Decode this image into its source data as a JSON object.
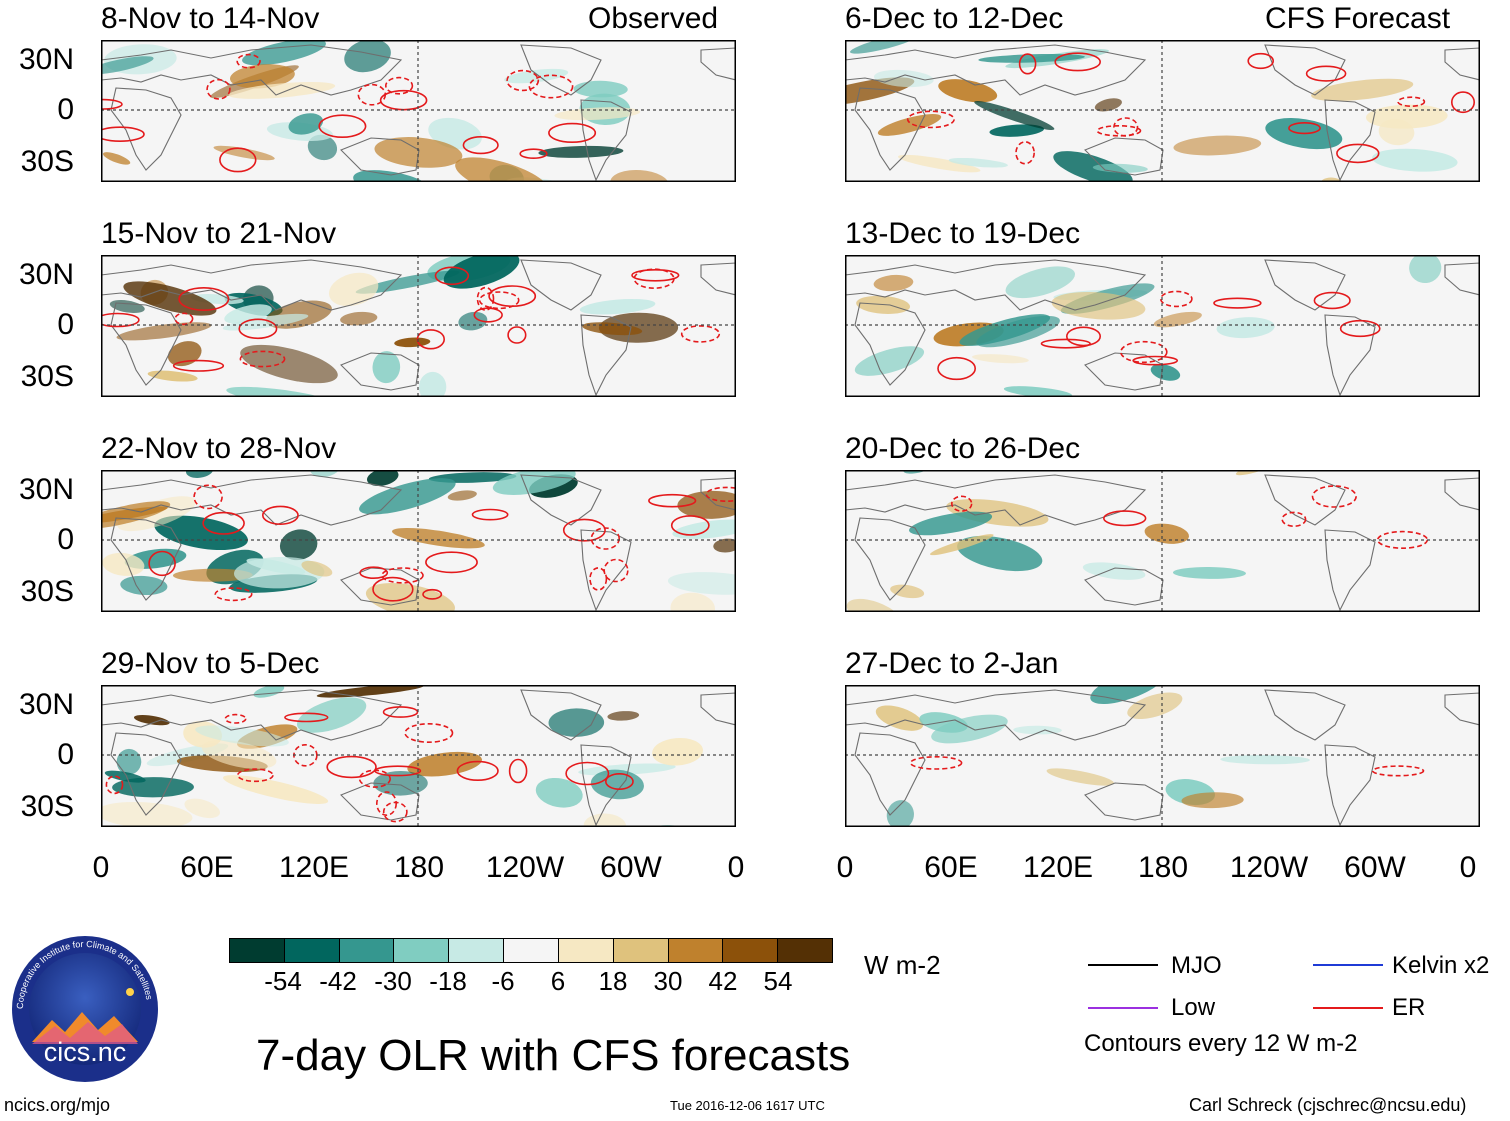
{
  "figure": {
    "title": "7-day OLR with CFS forecasts",
    "units": "W m-2",
    "contour_note": "Contours every 12 W m-2",
    "url": "ncics.org/mjo",
    "timestamp": "Tue 2016-12-06 1617 UTC",
    "author": "Carl Schreck (cjschrec@ncsu.edu)",
    "logo_text": "cics.nc",
    "logo_ring_text": "Cooperative Institute for Climate and Satellites"
  },
  "columns": {
    "left_label": "Observed",
    "right_label": "CFS Forecast"
  },
  "panels_observed": [
    {
      "title": "8-Nov to 14-Nov"
    },
    {
      "title": "15-Nov to 21-Nov"
    },
    {
      "title": "22-Nov to 28-Nov"
    },
    {
      "title": "29-Nov to 5-Dec"
    }
  ],
  "panels_forecast": [
    {
      "title": "6-Dec to 12-Dec"
    },
    {
      "title": "13-Dec to 19-Dec"
    },
    {
      "title": "20-Dec to 26-Dec"
    },
    {
      "title": "27-Dec to 2-Jan"
    }
  ],
  "lat_labels": [
    "30N",
    "0",
    "30S"
  ],
  "lon_labels": [
    "0",
    "60E",
    "120E",
    "180",
    "120W",
    "60W",
    "0"
  ],
  "colorbar": {
    "ticks": [
      "-54",
      "-42",
      "-30",
      "-18",
      "-6",
      "6",
      "18",
      "30",
      "42",
      "54"
    ],
    "colors": [
      "#003c30",
      "#01665e",
      "#35978f",
      "#80cdc1",
      "#c7eae5",
      "#f5f5f5",
      "#f6e8c3",
      "#dfc27d",
      "#bf812d",
      "#8c510a",
      "#543005"
    ]
  },
  "legend": [
    {
      "label": "MJO",
      "color": "#000000"
    },
    {
      "label": "Kelvin x2",
      "color": "#1f3bd6"
    },
    {
      "label": "Low",
      "color": "#9b30e0"
    },
    {
      "label": "ER",
      "color": "#e41a1c"
    }
  ]
}
